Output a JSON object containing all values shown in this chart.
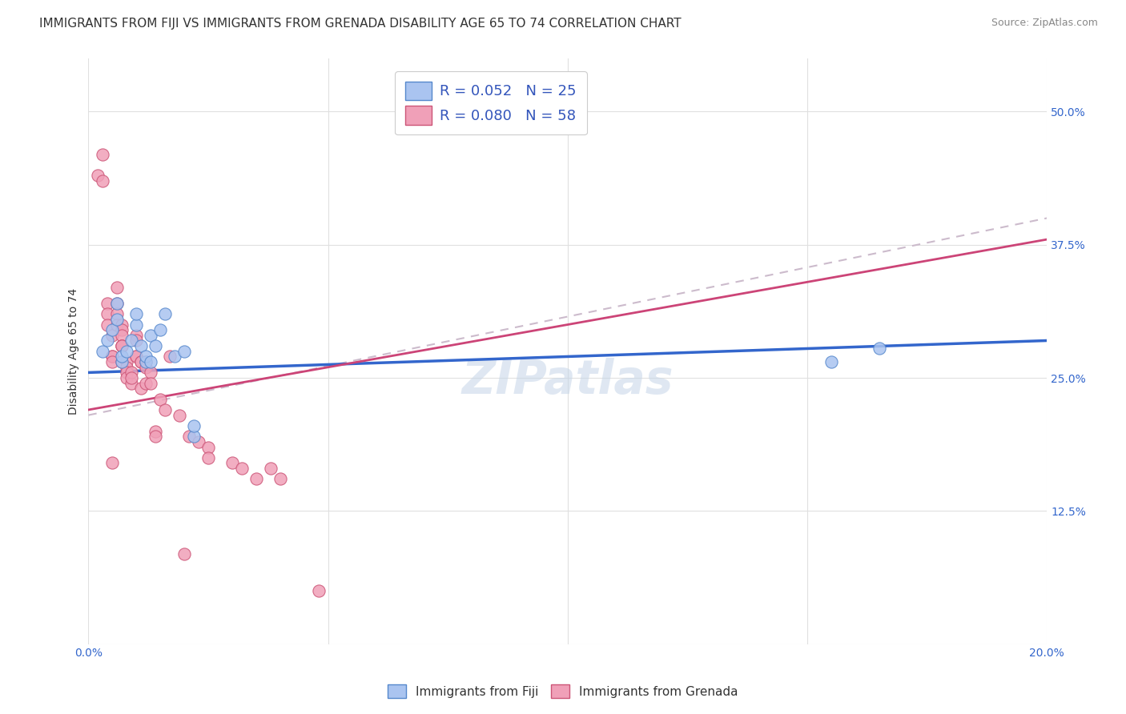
{
  "title": "IMMIGRANTS FROM FIJI VS IMMIGRANTS FROM GRENADA DISABILITY AGE 65 TO 74 CORRELATION CHART",
  "source": "Source: ZipAtlas.com",
  "ylabel": "Disability Age 65 to 74",
  "x_min": 0.0,
  "x_max": 0.2,
  "y_min": 0.0,
  "y_max": 0.55,
  "x_ticks": [
    0.0,
    0.05,
    0.1,
    0.15,
    0.2
  ],
  "y_ticks": [
    0.0,
    0.125,
    0.25,
    0.375,
    0.5
  ],
  "fiji_color": "#aac4f0",
  "fiji_edge_color": "#5588cc",
  "grenada_color": "#f0a0b8",
  "grenada_edge_color": "#cc5577",
  "fiji_R": 0.052,
  "fiji_N": 25,
  "grenada_R": 0.08,
  "grenada_N": 58,
  "fiji_scatter_x": [
    0.003,
    0.004,
    0.005,
    0.006,
    0.006,
    0.007,
    0.007,
    0.008,
    0.009,
    0.01,
    0.01,
    0.011,
    0.012,
    0.012,
    0.013,
    0.013,
    0.014,
    0.015,
    0.016,
    0.018,
    0.02,
    0.022,
    0.022,
    0.155,
    0.165
  ],
  "fiji_scatter_y": [
    0.275,
    0.285,
    0.295,
    0.305,
    0.32,
    0.265,
    0.27,
    0.275,
    0.285,
    0.3,
    0.31,
    0.28,
    0.265,
    0.27,
    0.265,
    0.29,
    0.28,
    0.295,
    0.31,
    0.27,
    0.275,
    0.195,
    0.205,
    0.265,
    0.278
  ],
  "grenada_scatter_x": [
    0.002,
    0.003,
    0.003,
    0.004,
    0.004,
    0.004,
    0.005,
    0.005,
    0.005,
    0.005,
    0.005,
    0.006,
    0.006,
    0.006,
    0.006,
    0.007,
    0.007,
    0.007,
    0.007,
    0.007,
    0.007,
    0.007,
    0.008,
    0.008,
    0.008,
    0.008,
    0.009,
    0.009,
    0.009,
    0.01,
    0.01,
    0.01,
    0.01,
    0.011,
    0.011,
    0.011,
    0.012,
    0.012,
    0.012,
    0.013,
    0.013,
    0.014,
    0.014,
    0.015,
    0.016,
    0.017,
    0.019,
    0.02,
    0.021,
    0.023,
    0.025,
    0.025,
    0.03,
    0.032,
    0.035,
    0.038,
    0.04,
    0.048
  ],
  "grenada_scatter_y": [
    0.44,
    0.46,
    0.435,
    0.32,
    0.31,
    0.3,
    0.29,
    0.27,
    0.27,
    0.265,
    0.17,
    0.335,
    0.32,
    0.31,
    0.3,
    0.3,
    0.295,
    0.29,
    0.28,
    0.28,
    0.28,
    0.265,
    0.265,
    0.26,
    0.255,
    0.25,
    0.245,
    0.255,
    0.25,
    0.29,
    0.285,
    0.27,
    0.27,
    0.265,
    0.265,
    0.24,
    0.265,
    0.26,
    0.245,
    0.255,
    0.245,
    0.2,
    0.195,
    0.23,
    0.22,
    0.27,
    0.215,
    0.085,
    0.195,
    0.19,
    0.185,
    0.175,
    0.17,
    0.165,
    0.155,
    0.165,
    0.155,
    0.05
  ],
  "fiji_trend_x": [
    0.0,
    0.2
  ],
  "fiji_trend_y": [
    0.255,
    0.285
  ],
  "grenada_trend_x": [
    0.0,
    0.2
  ],
  "grenada_trend_y": [
    0.22,
    0.38
  ],
  "grenada_dashed_trend_x": [
    0.0,
    0.2
  ],
  "grenada_dashed_trend_y": [
    0.215,
    0.4
  ],
  "background_color": "#ffffff",
  "grid_color": "#e0e0e0",
  "trend_fiji_color": "#3366cc",
  "trend_grenada_solid_color": "#cc4477",
  "trend_grenada_dashed_color": "#ccbbcc",
  "watermark": "ZIPatlas",
  "title_fontsize": 11,
  "axis_label_fontsize": 10,
  "tick_fontsize": 10,
  "legend_label_color": "#3355bb"
}
